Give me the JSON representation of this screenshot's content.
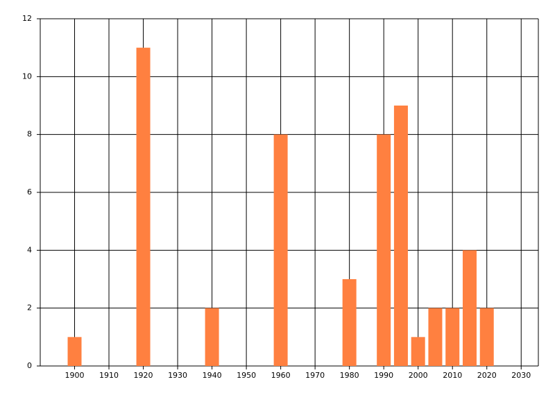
{
  "chart_data": {
    "type": "bar",
    "x": [
      1900,
      1920,
      1940,
      1960,
      1980,
      1990,
      1995,
      2000,
      2005,
      2010,
      2015,
      2020
    ],
    "values": [
      1,
      11,
      2,
      8,
      3,
      8,
      9,
      1,
      2,
      2,
      4,
      2
    ],
    "color": "#ff8040",
    "xlim": [
      1890,
      2035
    ],
    "xticks": [
      1900,
      1910,
      1920,
      1930,
      1940,
      1950,
      1960,
      1970,
      1980,
      1990,
      2000,
      2010,
      2020,
      2030
    ],
    "ylim": [
      0,
      12
    ],
    "yticks": [
      0,
      2,
      4,
      6,
      8,
      10,
      12
    ],
    "grid": true
  }
}
